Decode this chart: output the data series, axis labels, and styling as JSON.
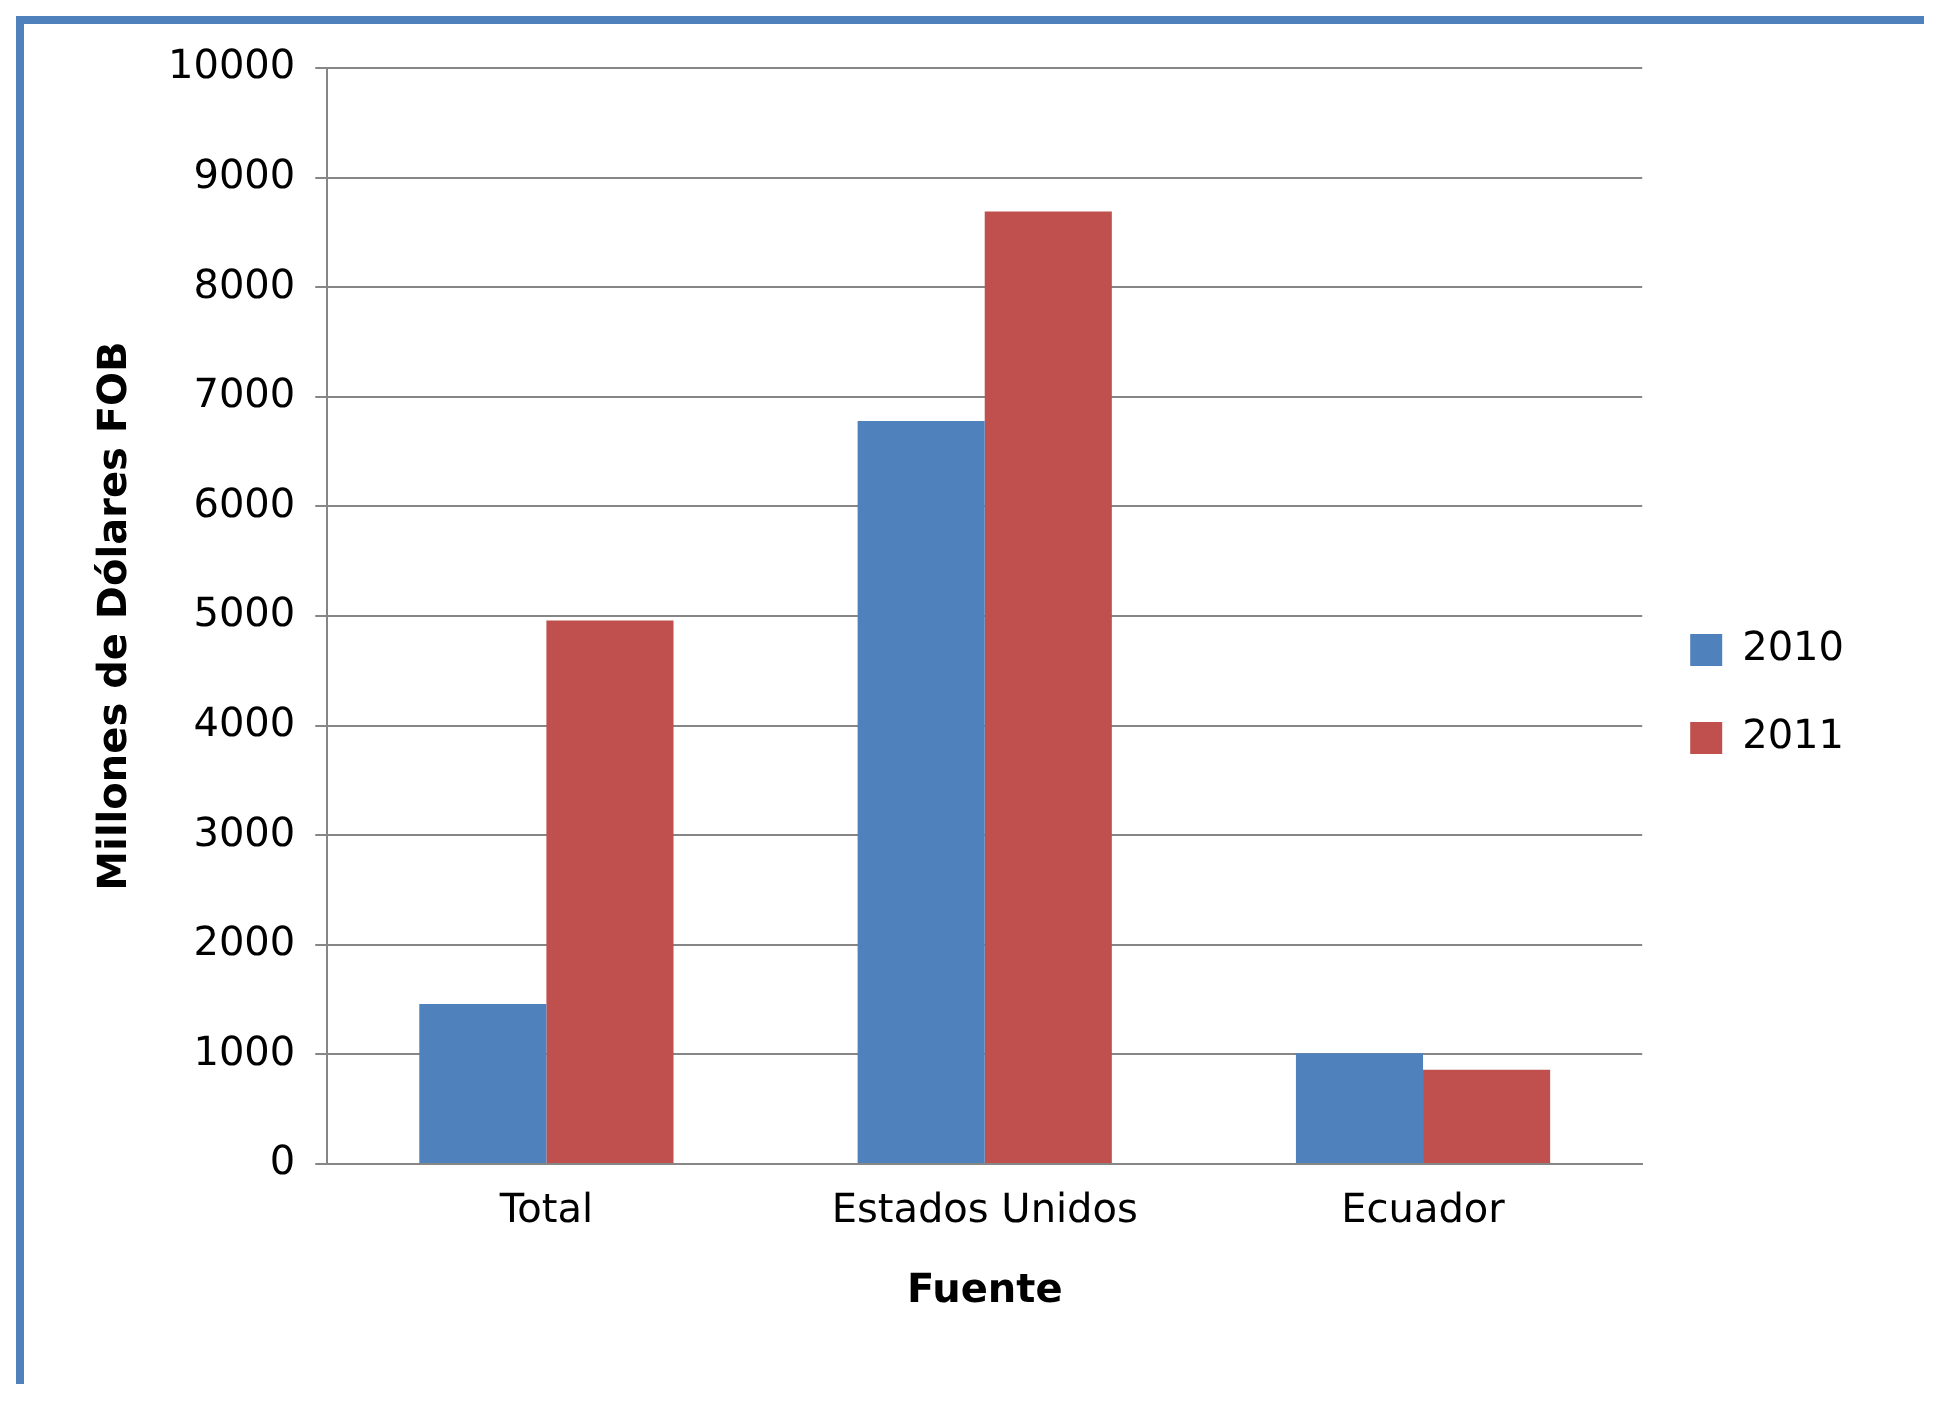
{
  "chart_data": {
    "type": "bar",
    "xlabel": "Fuente",
    "ylabel": "Millones de Dólares FOB",
    "categories": [
      "Total",
      "Estados Unidos",
      "Ecuador"
    ],
    "series": [
      {
        "name": "2010",
        "color": "#4f81bd",
        "values": [
          1460,
          6780,
          1010
        ]
      },
      {
        "name": "2011",
        "color": "#c0504d",
        "values": [
          4960,
          8690,
          860
        ]
      }
    ],
    "ylim": [
      0,
      10000
    ],
    "yticks": [
      0,
      1000,
      2000,
      3000,
      4000,
      5000,
      6000,
      7000,
      8000,
      9000,
      10000
    ],
    "grid": "y",
    "legend": "right"
  }
}
